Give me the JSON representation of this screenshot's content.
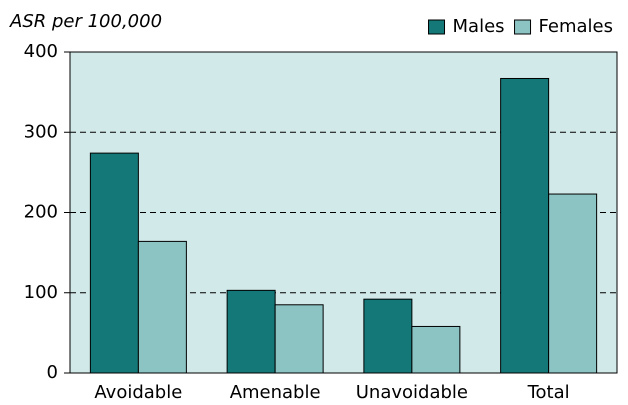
{
  "chart_data": {
    "type": "bar",
    "y_label": "ASR per 100,000",
    "categories": [
      "Avoidable",
      "Amenable",
      "Unavoidable",
      "Total"
    ],
    "series": [
      {
        "name": "Males",
        "color": "#147878",
        "values": [
          274,
          103,
          92,
          367
        ]
      },
      {
        "name": "Females",
        "color": "#8cc4c4",
        "values": [
          164,
          85,
          58,
          223
        ]
      }
    ],
    "ylim": [
      0,
      400
    ],
    "yticks": [
      0,
      100,
      200,
      300,
      400
    ],
    "grid": true,
    "legend": "top-right"
  }
}
